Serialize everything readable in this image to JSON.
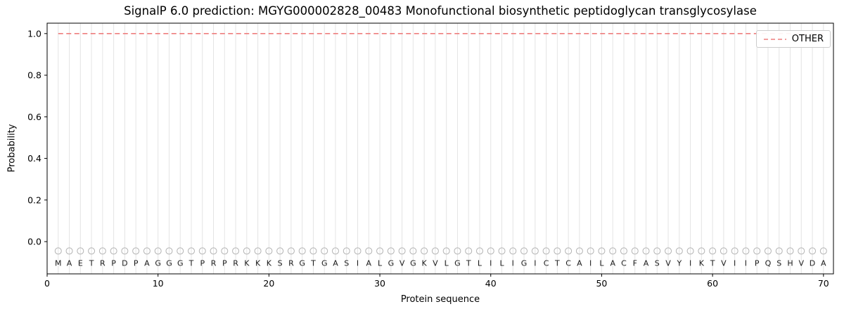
{
  "chart_data": {
    "type": "line",
    "title": "SignalP 6.0 prediction: MGYG000002828_00483 Monofunctional biosynthetic peptidoglycan transglycosylase",
    "xlabel": "Protein sequence",
    "ylabel": "Probability",
    "xlim": [
      0,
      70.9
    ],
    "ylim": [
      -0.155,
      1.05
    ],
    "xticks": [
      0,
      10,
      20,
      30,
      40,
      50,
      60,
      70
    ],
    "yticks": [
      "0.0",
      "0.2",
      "0.4",
      "0.6",
      "0.8",
      "1.0"
    ],
    "grid": "light vertical gridline at every residue position",
    "legend": {
      "position": "upper right",
      "entries": [
        {
          "label": "OTHER",
          "color": "#ee7e7e",
          "style": "dashed"
        }
      ]
    },
    "series": [
      {
        "name": "OTHER",
        "style": "dashed",
        "color": "#ee7e7e",
        "x_start": 1,
        "x_end": 70,
        "y_constant": 1.0
      }
    ],
    "sequence": "MAETRPDPAGGGTPRPRKKKSRGTGASIALGVGKVLGTLILIGICTCAILACFASVYIKTVIIPQSHVDA",
    "residue_positions_start": 1,
    "residue_marker_y": -0.045,
    "colors": {
      "line_other": "#ee7e7e",
      "gridline": "#e4e4e4",
      "marker_stroke": "#b3b3b3",
      "letter": "#1a1a1a",
      "axis": "#000000",
      "background": "#ffffff"
    }
  }
}
